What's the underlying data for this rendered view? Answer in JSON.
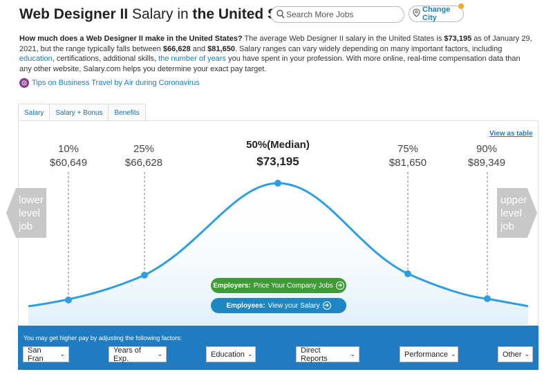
{
  "header": {
    "title_bold_1": "Web Designer II",
    "title_normal": "Salary in",
    "title_bold_2": "the United States",
    "search_placeholder": "Search More Jobs",
    "change_city": "Change City"
  },
  "intro": {
    "question": "How much does a Web Designer II make in the United States?",
    "p1": "The average Web Designer II salary in the United States is",
    "avg": "$73,195",
    "p2": "as of January 29, 2021, but the range typically falls between",
    "low": "$66,628",
    "and": "and",
    "high": "$81,650",
    "p3": ". Salary ranges can vary widely depending on many important factors, including",
    "link1": "education",
    "p4": ", certifications, additional skills,",
    "link2": "the number of years",
    "p5": "you have spent in your profession. With more online, real-time compensation data than any other website, Salary.com helps you determine your exact pay target."
  },
  "tips": "Tips on Business Travel by Air during Coronavirus",
  "tabs": [
    "Salary",
    "Salary + Bonus",
    "Benefits"
  ],
  "view_as_table": "View as table",
  "percentiles": [
    {
      "label": "10%",
      "value": "$60,649"
    },
    {
      "label": "25%",
      "value": "$66,628"
    },
    {
      "label": "50%(Median)",
      "value": "$73,195"
    },
    {
      "label": "75%",
      "value": "$81,650"
    },
    {
      "label": "90%",
      "value": "$89,349"
    }
  ],
  "side": {
    "lower": [
      "lower",
      "level",
      "job"
    ],
    "upper": [
      "upper",
      "level",
      "job"
    ]
  },
  "buttons": {
    "employers_lead": "Employers:",
    "employers_rest": "Price Your Company Jobs",
    "employees_lead": "Employees:",
    "employees_rest": "View your Salary"
  },
  "factors": {
    "note": "You may get higher pay by adjusting the following factors:",
    "selects": [
      "San Fran",
      "Years of Exp.",
      "Education",
      "Direct Reports",
      "Performance",
      "Other"
    ]
  },
  "colors": {
    "curve": "#2f9ee0",
    "green_button": "#3f9b35",
    "blue_button": "#1f86c4",
    "factor_bar": "#1f7cc0",
    "link": "#1a7fb4"
  }
}
